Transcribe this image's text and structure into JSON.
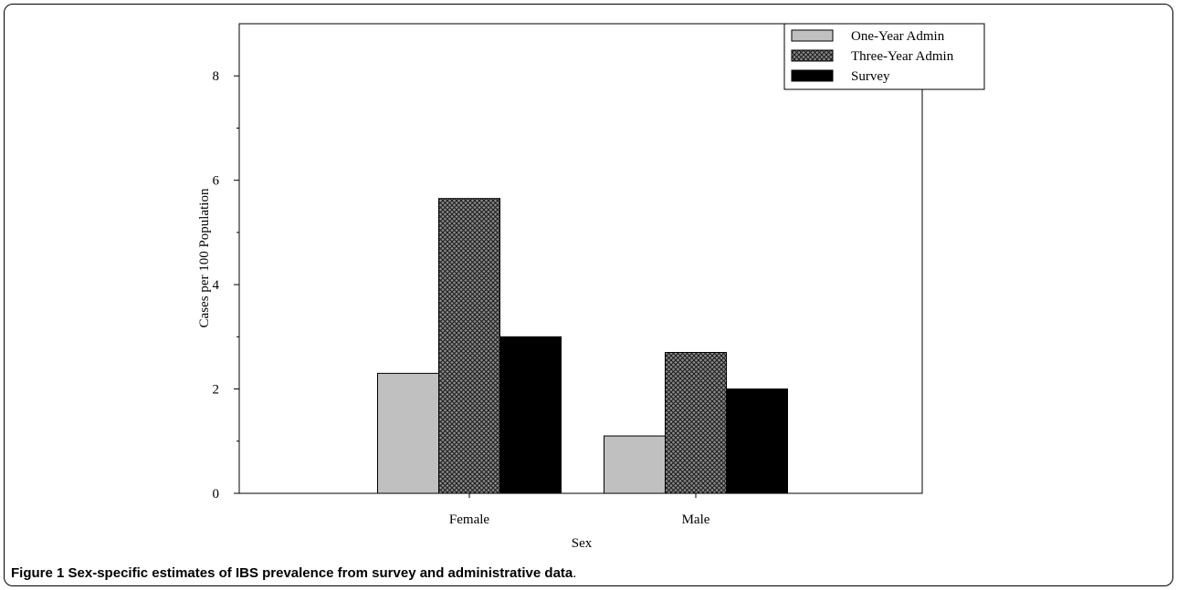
{
  "caption": {
    "label": "Figure 1",
    "text": "Sex-specific estimates of IBS prevalence from survey and administrative data",
    "end": "."
  },
  "chart_data": {
    "type": "bar",
    "title": "",
    "xlabel": "Sex",
    "ylabel": "Cases per 100 Population",
    "categories": [
      "Female",
      "Male"
    ],
    "ylim": [
      0,
      9
    ],
    "yticks": [
      0,
      2,
      4,
      6,
      8
    ],
    "grid": false,
    "legend_position": "top-right",
    "series": [
      {
        "name": "One-Year Admin",
        "values": [
          2.3,
          1.1
        ],
        "fill": "#c0c0c0",
        "pattern": "solid"
      },
      {
        "name": "Three-Year Admin",
        "values": [
          5.65,
          2.7
        ],
        "fill": "#808080",
        "pattern": "crosshatch"
      },
      {
        "name": "Survey",
        "values": [
          3.0,
          2.0
        ],
        "fill": "#000000",
        "pattern": "solid"
      }
    ]
  }
}
